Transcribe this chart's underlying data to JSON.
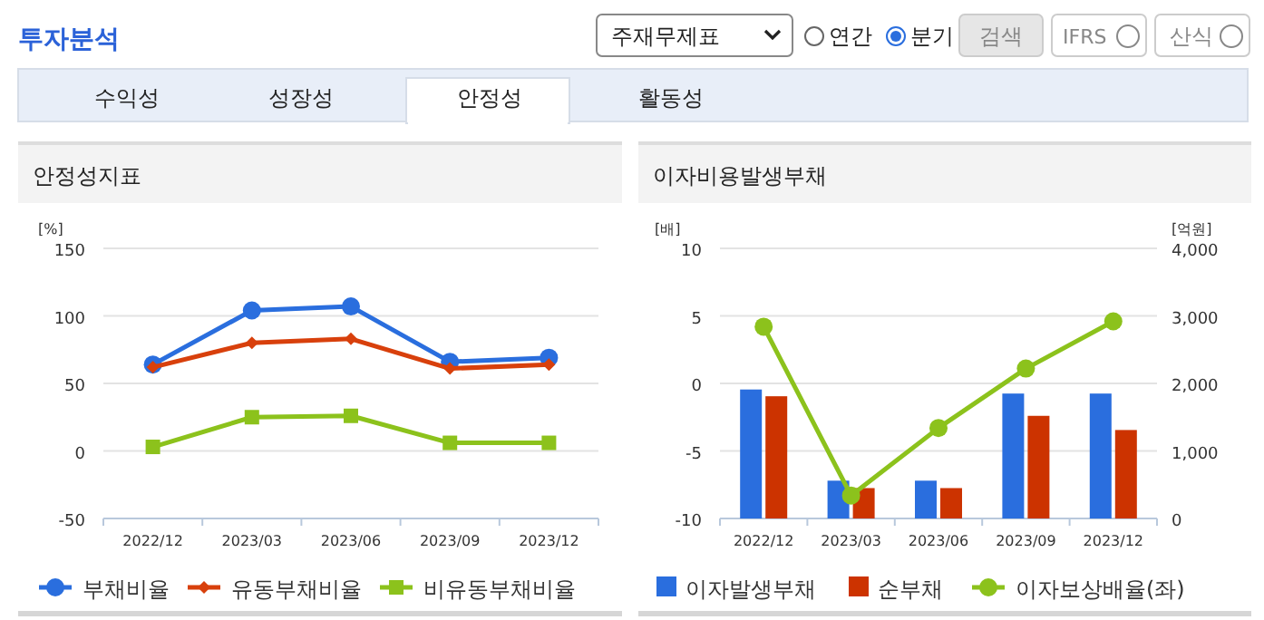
{
  "chart_data": [
    {
      "type": "other",
      "title": "투자분석",
      "annotations": [
        "주재무제표",
        "연간",
        "분기",
        "검색",
        "IFRS",
        "산식",
        "수익성",
        "성장성",
        "안정성",
        "활동성"
      ]
    },
    {
      "type": "line",
      "title": "안정성지표",
      "ylabel": "[%]",
      "categories": [
        "2022/12",
        "2023/03",
        "2023/06",
        "2023/09",
        "2023/12"
      ],
      "ylim": [
        -50,
        150
      ],
      "yticks": [
        -50,
        0,
        50,
        100,
        150
      ],
      "grid": "y",
      "legend": "bottom",
      "series": [
        {
          "name": "부채비율",
          "color": "#2a6ede",
          "marker": "circle",
          "values": [
            64,
            104,
            107,
            66,
            69
          ]
        },
        {
          "name": "유동부채비율",
          "color": "#d8400c",
          "marker": "diamond",
          "values": [
            62,
            80,
            83,
            61,
            64
          ]
        },
        {
          "name": "비유동부채비율",
          "color": "#8cc21c",
          "marker": "square",
          "values": [
            3,
            25,
            26,
            6,
            6
          ]
        }
      ]
    },
    {
      "type": "bar",
      "title": "이자비용발생부채",
      "ylabel": "[배]",
      "y2label": "[억원]",
      "categories": [
        "2022/12",
        "2023/03",
        "2023/06",
        "2023/09",
        "2023/12"
      ],
      "ylim": [
        -10,
        10
      ],
      "yticks": [
        -10,
        -5,
        0,
        5,
        10
      ],
      "y2lim": [
        0,
        4000
      ],
      "y2ticks": [
        {
          "value": 0,
          "label": "0"
        },
        {
          "value": 1000,
          "label": "1,000"
        },
        {
          "value": 2000,
          "label": "2,000"
        },
        {
          "value": 3000,
          "label": "3,000"
        },
        {
          "value": 4000,
          "label": "4,000"
        }
      ],
      "grid": "y",
      "legend": "bottom",
      "series": [
        {
          "name": "이자발생부채",
          "color": "#2a6ede",
          "axis": "y2",
          "values": [
            1910,
            560,
            560,
            1850,
            1850
          ]
        },
        {
          "name": "순부채",
          "color": "#cc3300",
          "axis": "y2",
          "values": [
            1810,
            450,
            450,
            1520,
            1310
          ]
        },
        {
          "name": "이자보상배율(좌)",
          "type": "line",
          "marker": "circle",
          "color": "#8cc21c",
          "values": [
            4.2,
            -8.3,
            -3.3,
            1.1,
            4.6
          ]
        }
      ]
    }
  ]
}
